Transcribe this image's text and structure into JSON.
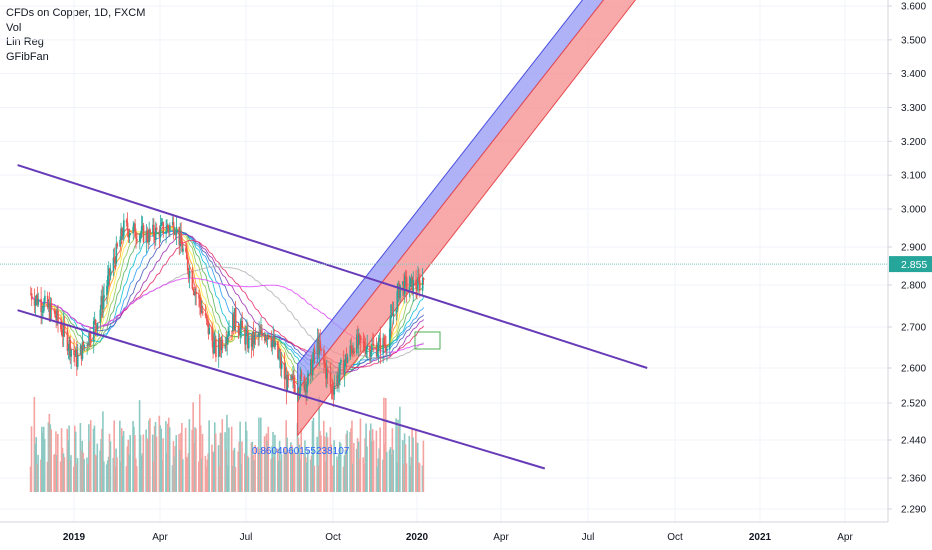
{
  "legend": {
    "title": "CFDs on Copper, 1D, FXCM",
    "indicators": [
      "Vol",
      "Lin Reg",
      "GFibFan"
    ]
  },
  "colors": {
    "background": "#ffffff",
    "axis_text": "#131722",
    "up_candle": "#26a69a",
    "down_candle": "#ef5350",
    "vol_up": "#8cc9c2",
    "vol_down": "#f4a3a0",
    "trendline": "#673ab7",
    "channel_upper": "#9598f5",
    "channel_lower": "#f58c8e",
    "price_badge": "#26a69a",
    "annotation": "#2962ff"
  },
  "chart_data": {
    "type": "candlestick",
    "instrument": "CFDs on Copper",
    "interval": "1D",
    "source": "FXCM",
    "current_price": "2.855",
    "annotation_text": "0.8604060155238107",
    "x_ticks": [
      "2019",
      "Apr",
      "Jul",
      "Oct",
      "2020",
      "Apr",
      "Jul",
      "Oct",
      "2021",
      "Apr"
    ],
    "y_ticks": [
      "3.600",
      "3.500",
      "3.400",
      "3.300",
      "3.200",
      "3.100",
      "3.000",
      "2.900",
      "2.800",
      "2.700",
      "2.600",
      "2.520",
      "2.440",
      "2.360",
      "2.290"
    ],
    "ylim": [
      2.26,
      3.62
    ],
    "price_anchors": [
      {
        "date": "2018-11-15",
        "close": 2.78
      },
      {
        "date": "2018-12-10",
        "close": 2.73
      },
      {
        "date": "2019-01-03",
        "close": 2.62
      },
      {
        "date": "2019-01-25",
        "close": 2.72
      },
      {
        "date": "2019-02-22",
        "close": 2.95
      },
      {
        "date": "2019-03-20",
        "close": 2.93
      },
      {
        "date": "2019-04-17",
        "close": 2.96
      },
      {
        "date": "2019-05-10",
        "close": 2.78
      },
      {
        "date": "2019-05-31",
        "close": 2.64
      },
      {
        "date": "2019-06-20",
        "close": 2.72
      },
      {
        "date": "2019-07-05",
        "close": 2.66
      },
      {
        "date": "2019-07-26",
        "close": 2.69
      },
      {
        "date": "2019-08-15",
        "close": 2.56
      },
      {
        "date": "2019-09-06",
        "close": 2.57
      },
      {
        "date": "2019-09-16",
        "close": 2.66
      },
      {
        "date": "2019-10-01",
        "close": 2.55
      },
      {
        "date": "2019-10-25",
        "close": 2.66
      },
      {
        "date": "2019-11-15",
        "close": 2.65
      },
      {
        "date": "2019-11-28",
        "close": 2.66
      },
      {
        "date": "2019-12-13",
        "close": 2.8
      },
      {
        "date": "2020-01-02",
        "close": 2.8
      },
      {
        "date": "2020-01-07",
        "close": 2.82
      }
    ],
    "trendlines": [
      {
        "name": "upper-downtrend",
        "start": {
          "date": "2018-11-01",
          "price": 3.13
        },
        "end": {
          "date": "2020-09-01",
          "price": 2.6
        }
      },
      {
        "name": "lower-downtrend",
        "start": {
          "date": "2018-11-01",
          "price": 2.74
        },
        "end": {
          "date": "2020-05-15",
          "price": 2.38
        }
      }
    ],
    "regression_channel": {
      "start": {
        "date": "2019-08-26"
      },
      "end": {
        "date": "2020-08-20"
      },
      "upper_start": 2.61,
      "mid_start": 2.55,
      "lower_start": 2.45,
      "upper_end": 3.82,
      "mid_end": 3.74,
      "lower_end": 3.62
    }
  }
}
